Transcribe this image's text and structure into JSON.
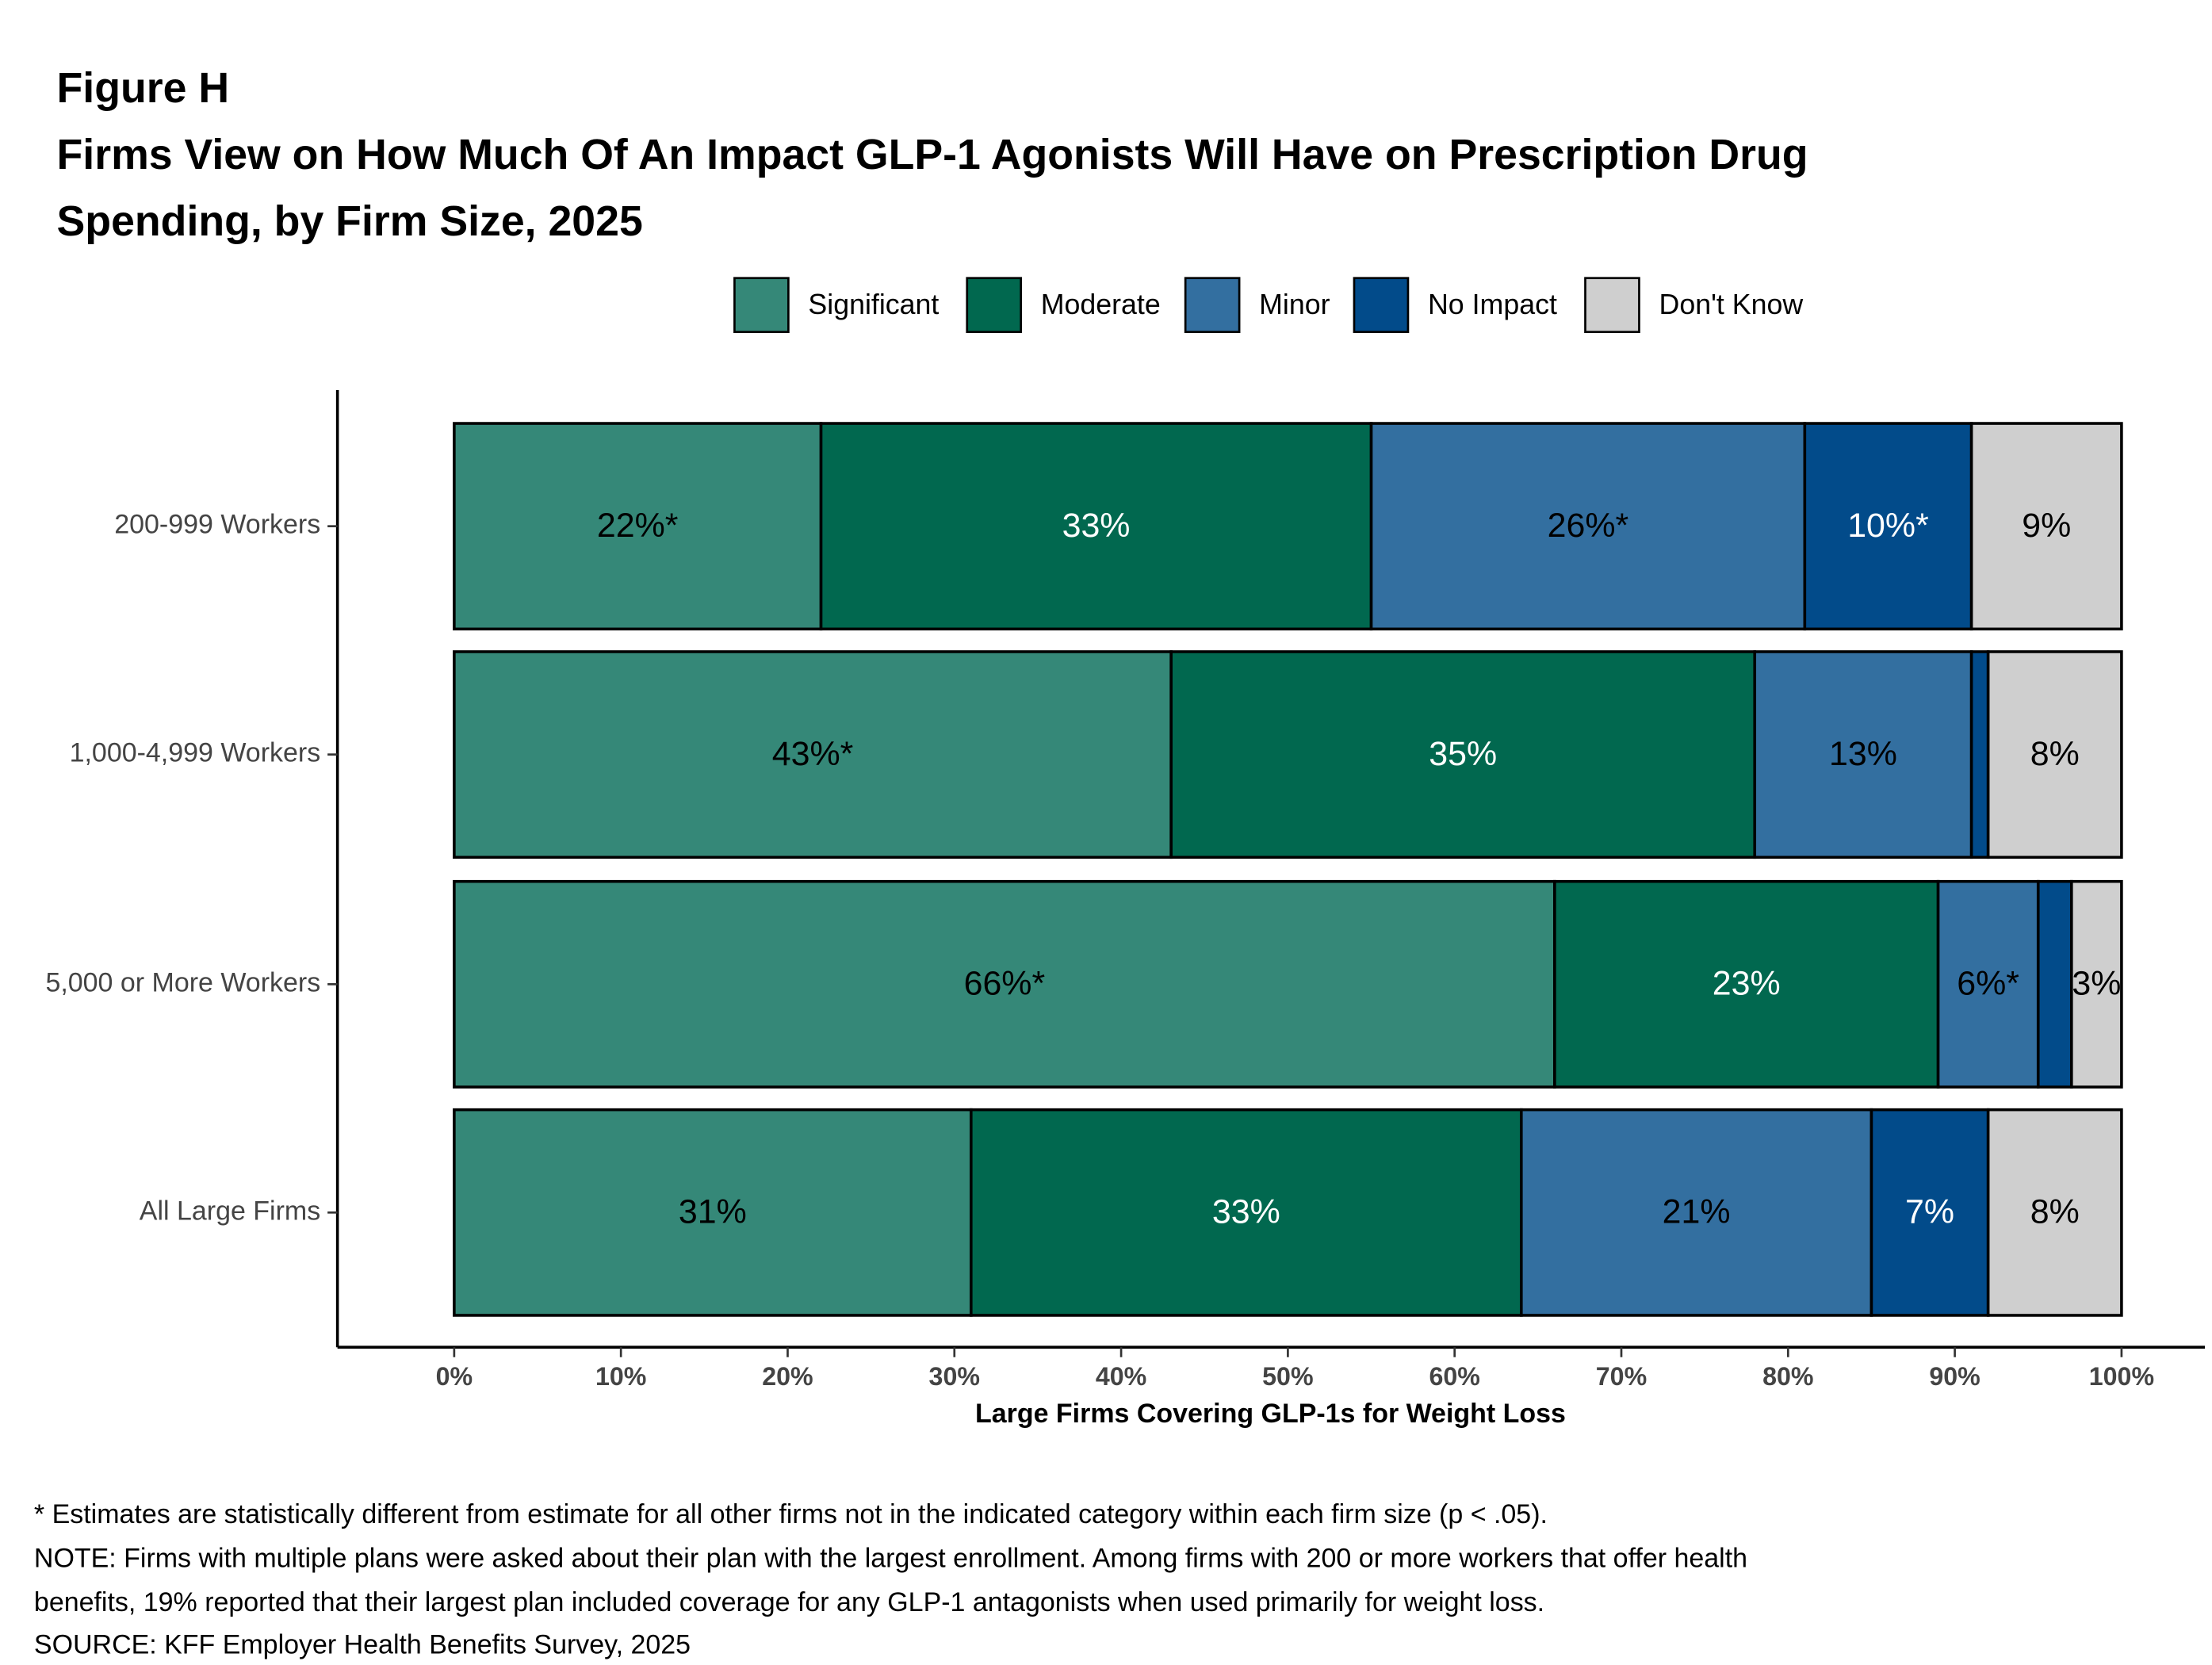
{
  "chart_data": {
    "type": "stacked-bar-horizontal",
    "title": "Figure H",
    "subtitle": [
      "Firms View on How Much Of An Impact GLP-1 Agonists Will Have on Prescription Drug",
      "Spending, by Firm Size, 2025"
    ],
    "categories": [
      "200-999 Workers",
      "1,000-4,999 Workers",
      "5,000 or More Workers",
      "All Large Firms"
    ],
    "series": [
      {
        "name": "Significant",
        "color": "#358878",
        "label_color": "#000000",
        "values": [
          22,
          43,
          66,
          31
        ],
        "value_labels": [
          "22%*",
          "43%*",
          "66%*",
          "31%"
        ]
      },
      {
        "name": "Moderate",
        "color": "#01684f",
        "label_color": "#ffffff",
        "values": [
          33,
          35,
          23,
          33
        ],
        "value_labels": [
          "33%",
          "35%",
          "23%",
          "33%"
        ]
      },
      {
        "name": "Minor",
        "color": "#336fa0",
        "label_color": "#000000",
        "values": [
          26,
          13,
          6,
          21
        ],
        "value_labels": [
          "26%*",
          "13%",
          "6%*",
          "21%"
        ]
      },
      {
        "name": "No Impact",
        "color": "#024b8a",
        "label_color": "#ffffff",
        "values": [
          10,
          1,
          2,
          7
        ],
        "value_labels": [
          "10%*",
          null,
          null,
          "7%"
        ]
      },
      {
        "name": "Don't Know",
        "color": "#cfcfcf",
        "label_color": "#000000",
        "values": [
          9,
          8,
          3,
          8
        ],
        "value_labels": [
          "9%",
          "8%",
          "3%",
          "8%"
        ]
      }
    ],
    "x_label": "Large Firms Covering GLP-1s for Weight Loss",
    "xlim": [
      -7,
      105
    ],
    "xticks": [
      {
        "value": 0,
        "label": "0%"
      },
      {
        "value": 10,
        "label": "10%"
      },
      {
        "value": 20,
        "label": "20%"
      },
      {
        "value": 30,
        "label": "30%"
      },
      {
        "value": 40,
        "label": "40%"
      },
      {
        "value": 50,
        "label": "50%"
      },
      {
        "value": 60,
        "label": "60%"
      },
      {
        "value": 70,
        "label": "70%"
      },
      {
        "value": 80,
        "label": "80%"
      },
      {
        "value": 90,
        "label": "90%"
      },
      {
        "value": 100,
        "label": "100%"
      }
    ],
    "legend": "top",
    "notes": [
      "* Estimates are statistically different from estimate for all other firms not in the indicated category within each firm size (p < .05).",
      "NOTE: Firms with multiple plans were asked about their plan with the largest enrollment.  Among firms with 200 or more workers that offer health",
      "benefits, 19% reported that their largest plan included coverage for any GLP-1 antagonists when used primarily for weight loss.",
      "SOURCE: KFF Employer Health Benefits Survey, 2025"
    ]
  }
}
